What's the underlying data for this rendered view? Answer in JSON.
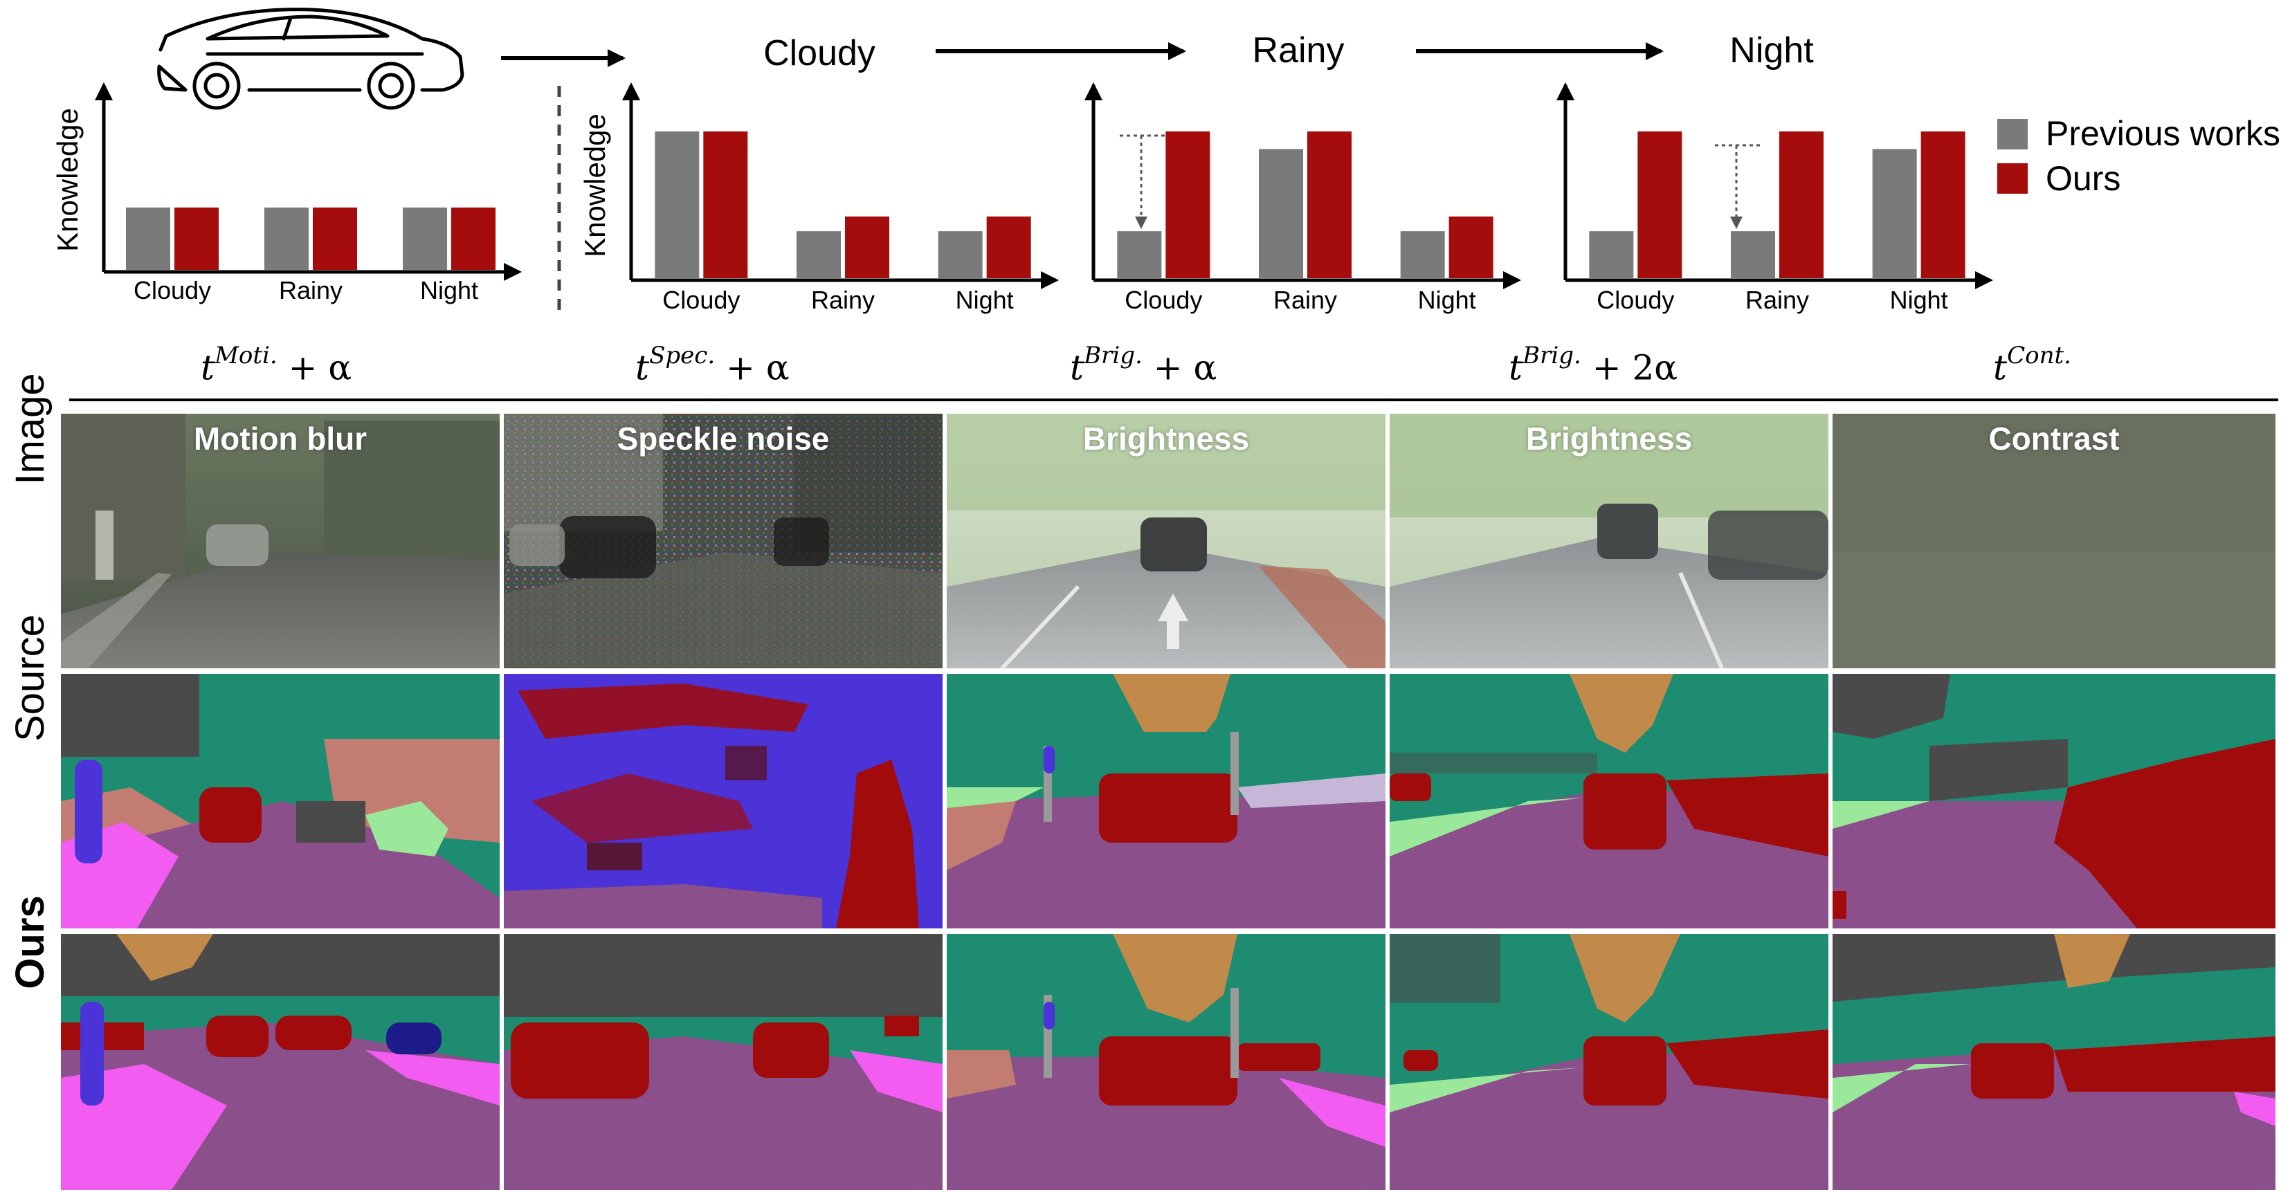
{
  "top": {
    "stages": [
      "Cloudy",
      "Rainy",
      "Night"
    ],
    "y_axis_label": "Knowledge",
    "legend": [
      {
        "label": "Previous works",
        "color": "#7a7a7a"
      },
      {
        "label": "Ours",
        "color": "#a50c0c"
      }
    ]
  },
  "chart_data": [
    {
      "type": "bar",
      "categories": [
        "Cloudy",
        "Rainy",
        "Night"
      ],
      "series": [
        {
          "name": "Previous works",
          "values": [
            0.45,
            0.45,
            0.45
          ]
        },
        {
          "name": "Ours",
          "values": [
            0.45,
            0.45,
            0.45
          ]
        }
      ]
    },
    {
      "type": "bar",
      "categories": [
        "Cloudy",
        "Rainy",
        "Night"
      ],
      "series": [
        {
          "name": "Previous works",
          "values": [
            1.0,
            0.32,
            0.32
          ]
        },
        {
          "name": "Ours",
          "values": [
            1.0,
            0.42,
            0.42
          ]
        }
      ]
    },
    {
      "type": "bar",
      "categories": [
        "Cloudy",
        "Rainy",
        "Night"
      ],
      "series": [
        {
          "name": "Previous works",
          "values": [
            0.32,
            0.88,
            0.32
          ]
        },
        {
          "name": "Ours",
          "values": [
            1.0,
            1.0,
            0.42
          ]
        }
      ]
    },
    {
      "type": "bar",
      "categories": [
        "Cloudy",
        "Rainy",
        "Night"
      ],
      "series": [
        {
          "name": "Previous works",
          "values": [
            0.32,
            0.32,
            0.88
          ]
        },
        {
          "name": "Ours",
          "values": [
            1.0,
            1.0,
            1.0
          ]
        }
      ]
    }
  ],
  "grid": {
    "columns": [
      {
        "math_base": "t",
        "math_sup": "Moti.",
        "math_suffix": "+ α",
        "title": "Motion blur"
      },
      {
        "math_base": "t",
        "math_sup": "Spec.",
        "math_suffix": "+ α",
        "title": "Speckle noise"
      },
      {
        "math_base": "t",
        "math_sup": "Brig.",
        "math_suffix": "+ α",
        "title": "Brightness"
      },
      {
        "math_base": "t",
        "math_sup": "Brig.",
        "math_suffix": "+ 2α",
        "title": "Brightness"
      },
      {
        "math_base": "t",
        "math_sup": "Cont.",
        "math_suffix": "",
        "title": "Contrast"
      }
    ],
    "rows": [
      {
        "label": "Image",
        "bold": false
      },
      {
        "label": "Source",
        "bold": false
      },
      {
        "label": "Ours",
        "bold": true
      }
    ]
  },
  "colors": {
    "road": "#8b4f8c",
    "vegetation": "#1e8c70",
    "building": "#4a4a4a",
    "car": "#a10b0b",
    "sidewalk": "#f25cf0",
    "terrain": "#9be89a",
    "person": "#4b33d8",
    "wall": "#c27c72",
    "sky": "#c28a4a",
    "pole": "#9a9a9a",
    "bus": "#1d1a8a"
  }
}
